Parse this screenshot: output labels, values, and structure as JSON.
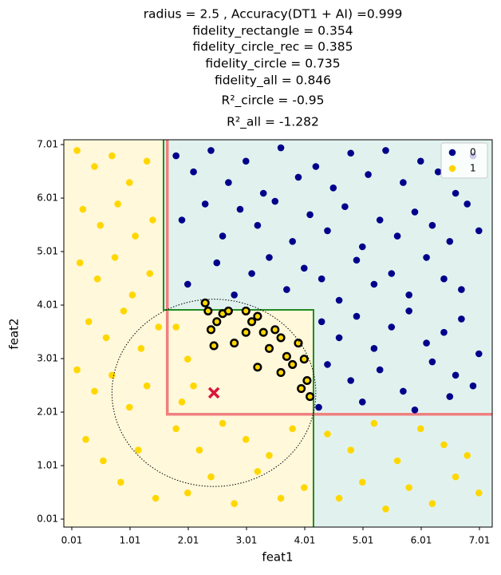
{
  "chart_data": {
    "type": "scatter",
    "title_lines": [
      "radius = 2.5 , Accuracy(DT1 + AI) =0.999",
      "fidelity_rectangle = 0.354",
      "fidelity_circle_rec = 0.385",
      "fidelity_circle = 0.735",
      "fidelity_all = 0.846",
      "R²_circle = -0.95",
      "R²_all = -1.282"
    ],
    "x_label": "feat1",
    "y_label": "feat2",
    "xlim": [
      -0.127,
      7.229
    ],
    "ylim": [
      -0.139,
      7.1
    ],
    "xticks": [
      0.01,
      1.01,
      2.01,
      3.01,
      4.01,
      5.01,
      6.01,
      7.01
    ],
    "yticks": [
      0.01,
      1.01,
      2.01,
      3.01,
      4.01,
      5.01,
      6.01,
      7.01
    ],
    "legend_position": "upper right",
    "background_colors": [
      "#fff8db",
      "#e1f2ee"
    ],
    "green_boundary": {
      "color": "#228b22",
      "x": [
        1.585,
        1.585,
        4.16,
        4.16
      ],
      "y": [
        7.1,
        3.92,
        3.92,
        -0.139
      ]
    },
    "salmon_boundary": {
      "color": "#f08080",
      "x": [
        1.65,
        1.65,
        7.229
      ],
      "y": [
        7.1,
        1.97,
        1.97
      ]
    },
    "circle": {
      "cx": 2.45,
      "cy": 2.37,
      "r": 1.75
    },
    "center_marker": {
      "x": 2.45,
      "y": 2.37,
      "color": "#dc143c"
    },
    "series": [
      {
        "name": "0",
        "color": "#00008b",
        "x": [
          1.8,
          2.1,
          2.4,
          2.7,
          3.0,
          3.3,
          3.6,
          3.9,
          4.2,
          4.5,
          4.8,
          5.1,
          5.4,
          5.7,
          6.0,
          6.3,
          6.6,
          6.9,
          1.9,
          2.3,
          2.6,
          2.9,
          3.2,
          3.5,
          3.8,
          4.1,
          4.4,
          4.7,
          5.0,
          5.3,
          5.6,
          5.9,
          6.2,
          6.5,
          6.8,
          7.0,
          2.0,
          2.5,
          2.8,
          3.1,
          3.4,
          3.7,
          4.0,
          4.3,
          4.6,
          4.9,
          5.2,
          5.5,
          5.8,
          6.1,
          6.4,
          6.7,
          4.3,
          4.6,
          4.9,
          5.2,
          5.5,
          5.8,
          6.1,
          6.4,
          6.7,
          7.0,
          4.4,
          4.8,
          5.3,
          5.7,
          6.2,
          6.6,
          6.9,
          4.25,
          5.0,
          5.9,
          6.5
        ],
        "y": [
          6.8,
          6.5,
          6.9,
          6.3,
          6.7,
          6.1,
          6.95,
          6.4,
          6.6,
          6.2,
          6.85,
          6.45,
          6.9,
          6.3,
          6.7,
          6.5,
          6.1,
          6.8,
          5.6,
          5.9,
          5.3,
          5.8,
          5.5,
          5.95,
          5.2,
          5.7,
          5.4,
          5.85,
          5.1,
          5.6,
          5.3,
          5.75,
          5.5,
          5.2,
          5.9,
          5.4,
          4.4,
          4.8,
          4.2,
          4.6,
          4.9,
          4.3,
          4.7,
          4.5,
          4.1,
          4.85,
          4.4,
          4.6,
          4.2,
          4.9,
          4.5,
          4.3,
          3.7,
          3.4,
          3.8,
          3.2,
          3.6,
          3.9,
          3.3,
          3.5,
          3.75,
          3.1,
          2.9,
          2.6,
          2.8,
          2.4,
          2.95,
          2.7,
          2.5,
          2.1,
          2.2,
          2.05,
          2.3
        ]
      },
      {
        "name": "1",
        "color": "#ffd700",
        "x": [
          0.1,
          0.4,
          0.7,
          1.0,
          1.3,
          0.2,
          0.5,
          0.8,
          1.1,
          1.4,
          0.15,
          0.45,
          0.75,
          1.05,
          1.35,
          0.3,
          0.6,
          0.9,
          1.2,
          1.5,
          0.1,
          0.4,
          0.7,
          1.0,
          1.3,
          0.25,
          0.55,
          0.85,
          1.15,
          1.45,
          1.8,
          2.2,
          2.6,
          3.0,
          3.4,
          3.8,
          2.0,
          2.4,
          2.8,
          3.2,
          3.6,
          4.0,
          1.8,
          2.0,
          2.1,
          1.9,
          4.4,
          4.8,
          5.2,
          5.6,
          6.0,
          6.4,
          6.8,
          4.6,
          5.0,
          5.4,
          5.8,
          6.2,
          6.6,
          7.0
        ],
        "y": [
          6.9,
          6.6,
          6.8,
          6.3,
          6.7,
          5.8,
          5.5,
          5.9,
          5.3,
          5.6,
          4.8,
          4.5,
          4.9,
          4.2,
          4.6,
          3.7,
          3.4,
          3.9,
          3.2,
          3.6,
          2.8,
          2.4,
          2.7,
          2.1,
          2.5,
          1.5,
          1.1,
          0.7,
          1.3,
          0.4,
          1.7,
          1.3,
          1.8,
          1.5,
          1.2,
          1.7,
          0.5,
          0.8,
          0.3,
          0.9,
          0.4,
          0.6,
          3.6,
          3.0,
          2.5,
          2.2,
          1.6,
          1.3,
          1.8,
          1.1,
          1.7,
          1.4,
          1.2,
          0.4,
          0.7,
          0.2,
          0.6,
          0.3,
          0.8,
          0.5
        ]
      }
    ],
    "highlighted": {
      "color": "#ffd700",
      "edgecolor": "#000000",
      "x": [
        2.3,
        2.35,
        2.6,
        2.5,
        2.7,
        3.0,
        3.1,
        3.2,
        3.3,
        3.5,
        3.6,
        3.9,
        3.7,
        4.0,
        2.45,
        2.8,
        3.4,
        3.8,
        4.05,
        3.95,
        3.2,
        3.6,
        4.1,
        2.4,
        3.0
      ],
      "y": [
        4.05,
        3.9,
        3.85,
        3.7,
        3.9,
        3.9,
        3.7,
        3.8,
        3.5,
        3.55,
        3.4,
        3.3,
        3.05,
        3.0,
        3.25,
        3.3,
        3.2,
        2.9,
        2.6,
        2.45,
        2.85,
        2.75,
        2.3,
        3.55,
        3.5
      ]
    }
  }
}
